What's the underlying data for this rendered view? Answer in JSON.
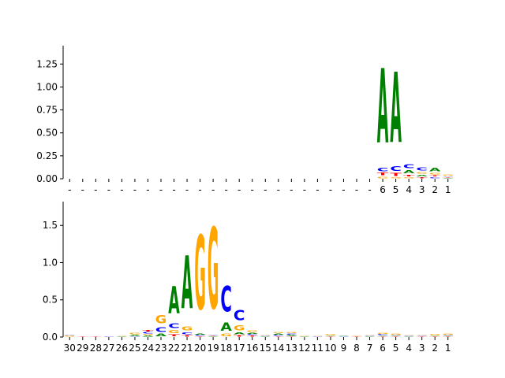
{
  "colors": {
    "A": "#008000",
    "C": "#0000ff",
    "G": "#ffa500",
    "T": "#ff0000",
    "axis": "#000000"
  },
  "chart_data": [
    {
      "type": "sequence-logo",
      "ylim": [
        0,
        1.45
      ],
      "yticks": [
        "0.00",
        "0.25",
        "0.50",
        "0.75",
        "1.00",
        "1.25"
      ],
      "ytick_values": [
        0,
        0.25,
        0.5,
        0.75,
        1.0,
        1.25
      ],
      "xtick_labels": [
        "-",
        "-",
        "-",
        "-",
        "-",
        "-",
        "-",
        "-",
        "-",
        "-",
        "-",
        "-",
        "-",
        "-",
        "-",
        "-",
        "-",
        "-",
        "-",
        "-",
        "-",
        "-",
        "-",
        "-",
        "6",
        "5",
        "4",
        "3",
        "2",
        "1"
      ],
      "stacks": [
        {
          "label": "6",
          "letters": [
            {
              "base": "G",
              "height": 0.03
            },
            {
              "base": "T",
              "height": 0.04
            },
            {
              "base": "C",
              "height": 0.06
            },
            {
              "base": "A",
              "height": 1.3
            }
          ]
        },
        {
          "label": "5",
          "letters": [
            {
              "base": "G",
              "height": 0.02
            },
            {
              "base": "T",
              "height": 0.05
            },
            {
              "base": "C",
              "height": 0.08
            },
            {
              "base": "A",
              "height": 1.23
            }
          ]
        },
        {
          "label": "4",
          "letters": [
            {
              "base": "G",
              "height": 0.02
            },
            {
              "base": "T",
              "height": 0.03
            },
            {
              "base": "A",
              "height": 0.05
            },
            {
              "base": "C",
              "height": 0.07
            }
          ]
        },
        {
          "label": "3",
          "letters": [
            {
              "base": "T",
              "height": 0.02
            },
            {
              "base": "A",
              "height": 0.03
            },
            {
              "base": "G",
              "height": 0.03
            },
            {
              "base": "C",
              "height": 0.05
            }
          ]
        },
        {
          "label": "2",
          "letters": [
            {
              "base": "C",
              "height": 0.02
            },
            {
              "base": "T",
              "height": 0.02
            },
            {
              "base": "G",
              "height": 0.03
            },
            {
              "base": "A",
              "height": 0.06
            }
          ]
        },
        {
          "label": "1",
          "letters": [
            {
              "base": "A",
              "height": 0.01
            },
            {
              "base": "T",
              "height": 0.01
            },
            {
              "base": "C",
              "height": 0.01
            },
            {
              "base": "G",
              "height": 0.02
            }
          ]
        }
      ]
    },
    {
      "type": "sequence-logo",
      "ylim": [
        0,
        1.82
      ],
      "yticks": [
        "0.0",
        "0.5",
        "1.0",
        "1.5"
      ],
      "ytick_values": [
        0,
        0.5,
        1.0,
        1.5
      ],
      "xtick_labels": [
        "30",
        "29",
        "28",
        "27",
        "26",
        "25",
        "24",
        "23",
        "22",
        "21",
        "20",
        "19",
        "18",
        "17",
        "16",
        "15",
        "14",
        "13",
        "12",
        "11",
        "10",
        "9",
        "8",
        "7",
        "6",
        "5",
        "4",
        "3",
        "2",
        "1"
      ],
      "stacks": [
        {
          "label": "30",
          "letters": [
            {
              "base": "G",
              "height": 0.02
            },
            {
              "base": "C",
              "height": 0.01
            }
          ]
        },
        {
          "label": "29",
          "letters": [
            {
              "base": "T",
              "height": 0.01
            }
          ]
        },
        {
          "label": "28",
          "letters": [
            {
              "base": "T",
              "height": 0.005
            }
          ]
        },
        {
          "label": "27",
          "letters": [
            {
              "base": "C",
              "height": 0.005
            }
          ]
        },
        {
          "label": "26",
          "letters": [
            {
              "base": "A",
              "height": 0.01
            },
            {
              "base": "G",
              "height": 0.01
            }
          ]
        },
        {
          "label": "25",
          "letters": [
            {
              "base": "C",
              "height": 0.01
            },
            {
              "base": "A",
              "height": 0.02
            },
            {
              "base": "G",
              "height": 0.03
            }
          ]
        },
        {
          "label": "24",
          "letters": [
            {
              "base": "A",
              "height": 0.02
            },
            {
              "base": "G",
              "height": 0.02
            },
            {
              "base": "C",
              "height": 0.03
            },
            {
              "base": "T",
              "height": 0.03
            }
          ]
        },
        {
          "label": "23",
          "letters": [
            {
              "base": "A",
              "height": 0.05
            },
            {
              "base": "C",
              "height": 0.1
            },
            {
              "base": "G",
              "height": 0.17
            }
          ]
        },
        {
          "label": "22",
          "letters": [
            {
              "base": "T",
              "height": 0.04
            },
            {
              "base": "G",
              "height": 0.06
            },
            {
              "base": "C",
              "height": 0.1
            },
            {
              "base": "A",
              "height": 0.58
            }
          ]
        },
        {
          "label": "21",
          "letters": [
            {
              "base": "T",
              "height": 0.03
            },
            {
              "base": "C",
              "height": 0.04
            },
            {
              "base": "G",
              "height": 0.09
            },
            {
              "base": "A",
              "height": 1.14
            }
          ]
        },
        {
          "label": "20",
          "letters": [
            {
              "base": "T",
              "height": 0.01
            },
            {
              "base": "C",
              "height": 0.02
            },
            {
              "base": "A",
              "height": 0.02
            },
            {
              "base": "G",
              "height": 1.6
            }
          ]
        },
        {
          "label": "19",
          "letters": [
            {
              "base": "A",
              "height": 0.01
            },
            {
              "base": "T",
              "height": 0.01
            },
            {
              "base": "C",
              "height": 0.01
            },
            {
              "base": "G",
              "height": 1.75
            }
          ]
        },
        {
          "label": "18",
          "letters": [
            {
              "base": "G",
              "height": 0.05
            },
            {
              "base": "A",
              "height": 0.18
            },
            {
              "base": "C",
              "height": 0.55
            }
          ]
        },
        {
          "label": "17",
          "letters": [
            {
              "base": "T",
              "height": 0.03
            },
            {
              "base": "A",
              "height": 0.04
            },
            {
              "base": "G",
              "height": 0.11
            },
            {
              "base": "C",
              "height": 0.22
            }
          ]
        },
        {
          "label": "16",
          "letters": [
            {
              "base": "T",
              "height": 0.02
            },
            {
              "base": "C",
              "height": 0.02
            },
            {
              "base": "A",
              "height": 0.02
            },
            {
              "base": "G",
              "height": 0.03
            }
          ]
        },
        {
          "label": "15",
          "letters": [
            {
              "base": "A",
              "height": 0.01
            },
            {
              "base": "C",
              "height": 0.01
            },
            {
              "base": "G",
              "height": 0.01
            }
          ]
        },
        {
          "label": "14",
          "letters": [
            {
              "base": "T",
              "height": 0.01
            },
            {
              "base": "C",
              "height": 0.02
            },
            {
              "base": "A",
              "height": 0.02
            },
            {
              "base": "G",
              "height": 0.02
            }
          ]
        },
        {
          "label": "13",
          "letters": [
            {
              "base": "T",
              "height": 0.01
            },
            {
              "base": "A",
              "height": 0.02
            },
            {
              "base": "C",
              "height": 0.02
            },
            {
              "base": "G",
              "height": 0.02
            }
          ]
        },
        {
          "label": "12",
          "letters": [
            {
              "base": "A",
              "height": 0.01
            },
            {
              "base": "G",
              "height": 0.01
            }
          ]
        },
        {
          "label": "11",
          "letters": [
            {
              "base": "C",
              "height": 0.01
            },
            {
              "base": "G",
              "height": 0.01
            }
          ]
        },
        {
          "label": "10",
          "letters": [
            {
              "base": "T",
              "height": 0.01
            },
            {
              "base": "A",
              "height": 0.01
            },
            {
              "base": "G",
              "height": 0.02
            }
          ]
        },
        {
          "label": "9",
          "letters": [
            {
              "base": "C",
              "height": 0.01
            },
            {
              "base": "A",
              "height": 0.01
            }
          ]
        },
        {
          "label": "8",
          "letters": [
            {
              "base": "T",
              "height": 0.01
            },
            {
              "base": "G",
              "height": 0.01
            }
          ]
        },
        {
          "label": "7",
          "letters": [
            {
              "base": "A",
              "height": 0.01
            },
            {
              "base": "C",
              "height": 0.01
            },
            {
              "base": "G",
              "height": 0.01
            }
          ]
        },
        {
          "label": "6",
          "letters": [
            {
              "base": "T",
              "height": 0.01
            },
            {
              "base": "A",
              "height": 0.01
            },
            {
              "base": "C",
              "height": 0.02
            },
            {
              "base": "G",
              "height": 0.02
            }
          ]
        },
        {
          "label": "5",
          "letters": [
            {
              "base": "T",
              "height": 0.01
            },
            {
              "base": "A",
              "height": 0.01
            },
            {
              "base": "C",
              "height": 0.01
            },
            {
              "base": "G",
              "height": 0.02
            }
          ]
        },
        {
          "label": "4",
          "letters": [
            {
              "base": "A",
              "height": 0.01
            },
            {
              "base": "C",
              "height": 0.01
            },
            {
              "base": "G",
              "height": 0.01
            }
          ]
        },
        {
          "label": "3",
          "letters": [
            {
              "base": "T",
              "height": 0.01
            },
            {
              "base": "C",
              "height": 0.01
            },
            {
              "base": "G",
              "height": 0.01
            }
          ]
        },
        {
          "label": "2",
          "letters": [
            {
              "base": "T",
              "height": 0.01
            },
            {
              "base": "A",
              "height": 0.01
            },
            {
              "base": "G",
              "height": 0.02
            }
          ]
        },
        {
          "label": "1",
          "letters": [
            {
              "base": "T",
              "height": 0.01
            },
            {
              "base": "A",
              "height": 0.01
            },
            {
              "base": "C",
              "height": 0.01
            },
            {
              "base": "G",
              "height": 0.02
            }
          ]
        }
      ]
    }
  ]
}
